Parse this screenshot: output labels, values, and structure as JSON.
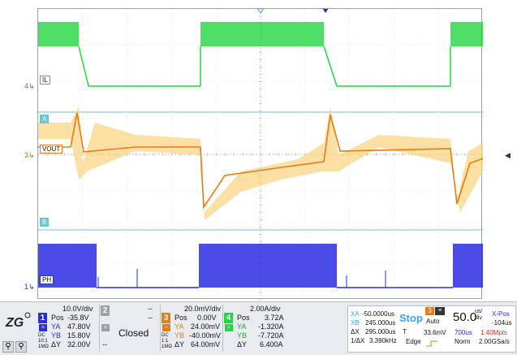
{
  "colors": {
    "ch1": "#2b2ce0",
    "ch2": "#9aa2a8",
    "ch3": "#e57c14",
    "ch3_env": "#fbd27a",
    "ch4": "#22d640",
    "ref": "#6bc5d6",
    "stop": "#3aa4f0"
  },
  "screen": {
    "labels": {
      "il": "IL",
      "a": "A",
      "vout": "VOUT",
      "b": "B",
      "ph": "PH"
    },
    "ground_markers": {
      "ch4": "4",
      "ch3": "3",
      "ch1": "1"
    },
    "right_handle_icon": "chevron-left-icon"
  },
  "status": {
    "ch1": {
      "num": "1",
      "scale": "10.0V/div",
      "pos_label": "Pos",
      "pos": "-35.8V",
      "ya": "YA",
      "ya_val": "47.80V",
      "yb": "YB",
      "yb_val": "15.80V",
      "dy": "ΔY",
      "dy_val": "32.00V",
      "coupling": "DC 10:1 1MΩ"
    },
    "ch2": {
      "num": "2",
      "dash1": "--",
      "dash2": "--",
      "dash3": "--",
      "closed": "Closed"
    },
    "ch3": {
      "num": "3",
      "scale": "20.0mV/div",
      "pos_label": "Pos",
      "pos": "0.00V",
      "ya": "YA",
      "ya_val": "24.00mV",
      "yb": "YB",
      "yb_val": "-40.00mV",
      "dy": "ΔY",
      "dy_val": "64.00mV",
      "coupling": "DC 1:1 1MΩ"
    },
    "ch4": {
      "num": "4",
      "scale": "2.00A/div",
      "pos_label": "Pos",
      "pos": "3.72A",
      "ya": "YA",
      "ya_val": "-1.320A",
      "yb": "YB",
      "yb_val": "-7.720A",
      "dy": "ΔY",
      "dy_val": "6.400A"
    },
    "cursor": {
      "xa": "XA",
      "xa_val": "-50.0000us",
      "xb": "XB",
      "xb_val": "245.000us",
      "dx": "ΔX",
      "dx_val": "295.000us",
      "idx": "1/ΔX",
      "idx_val": "3.390kHz"
    },
    "trigger": {
      "stop": "Stop",
      "src": "3",
      "mode": "Auto",
      "t": "T",
      "level": "33.6mV",
      "edge": "Edge"
    },
    "timebase": {
      "scale": "50.0",
      "unit_top": "us/",
      "unit_bot": "div",
      "xpos_label": "X-Pos",
      "xpos": "-104us",
      "window": "700us",
      "pts": "1.40Mpts",
      "acq": "Norm",
      "rate": "2.00GSa/s"
    }
  }
}
